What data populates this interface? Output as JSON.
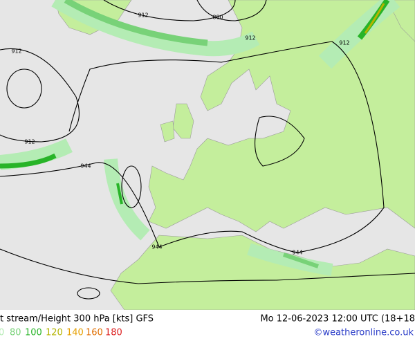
{
  "header": {
    "title": "t stream/Height 300 hPa [kts] GFS",
    "datetime": "Mo 12-06-2023 12:00 UTC (18+18"
  },
  "legend": [
    {
      "label": "0",
      "color": "#b4ecb4"
    },
    {
      "label": "80",
      "color": "#78d278"
    },
    {
      "label": "100",
      "color": "#28b428"
    },
    {
      "label": "120",
      "color": "#b4b400"
    },
    {
      "label": "140",
      "color": "#e6a000"
    },
    {
      "label": "160",
      "color": "#e06e00"
    },
    {
      "label": "180",
      "color": "#dc1e1e"
    }
  ],
  "credit": "©weatheronline.co.uk",
  "contour_labels": [
    "912",
    "880",
    "912",
    "912",
    "912",
    "912",
    "944",
    "944",
    "944"
  ]
}
